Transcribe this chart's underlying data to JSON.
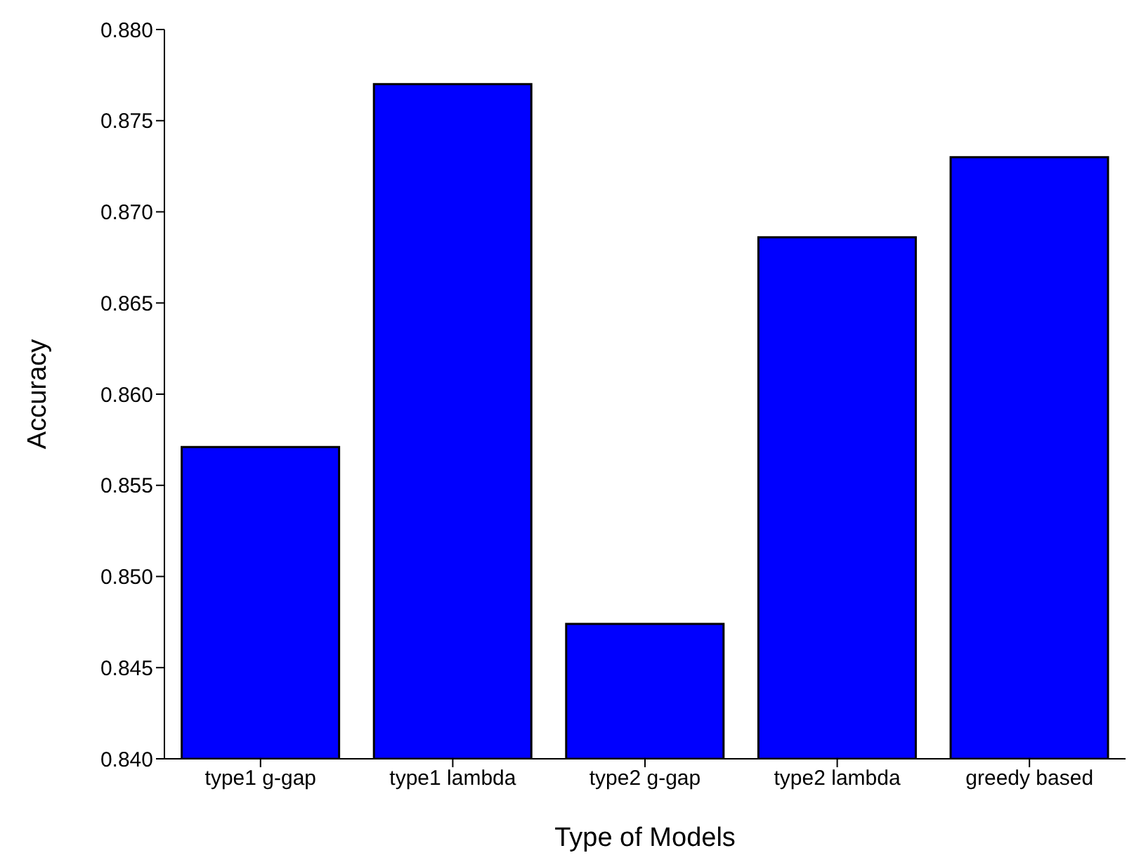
{
  "chart_data": {
    "type": "bar",
    "xlabel": "Type of Models",
    "ylabel": "Accuracy",
    "categories": [
      "type1 g-gap",
      "type1 lambda",
      "type2 g-gap",
      "type2 lambda",
      "greedy based"
    ],
    "values": [
      0.8571,
      0.877,
      0.8474,
      0.8686,
      0.873
    ],
    "color": "#0000ff",
    "ylim": [
      0.84,
      0.88
    ],
    "yticks": [
      {
        "value": 0.84,
        "label": "0.840"
      },
      {
        "value": 0.845,
        "label": "0.845"
      },
      {
        "value": 0.85,
        "label": "0.850"
      },
      {
        "value": 0.855,
        "label": "0.855"
      },
      {
        "value": 0.86,
        "label": "0.860"
      },
      {
        "value": 0.865,
        "label": "0.865"
      },
      {
        "value": 0.87,
        "label": "0.870"
      },
      {
        "value": 0.875,
        "label": "0.875"
      },
      {
        "value": 0.88,
        "label": "0.880"
      }
    ],
    "grid": false,
    "legend": false
  }
}
